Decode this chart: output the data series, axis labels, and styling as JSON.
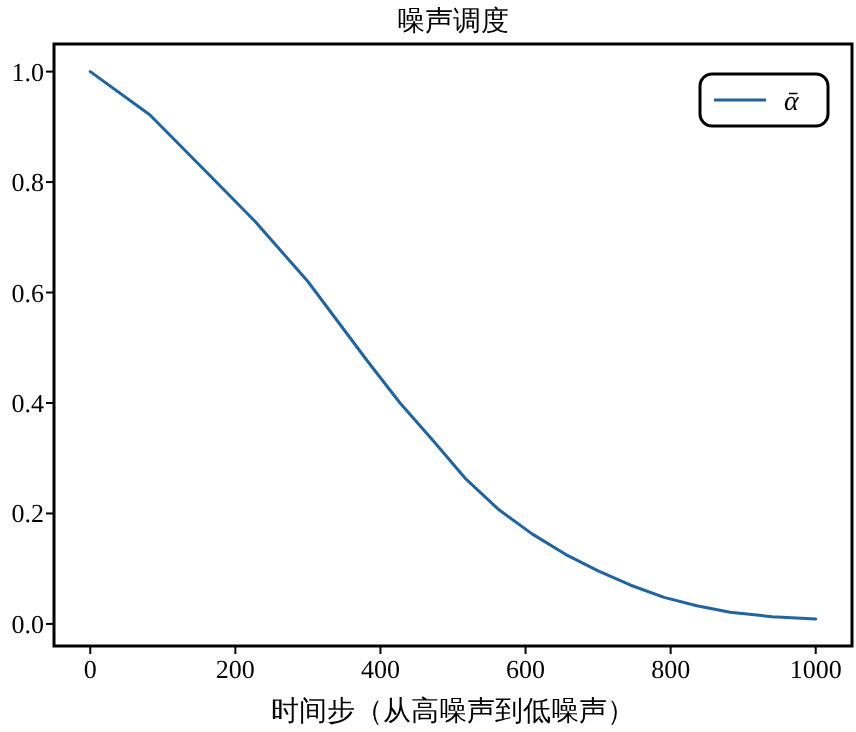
{
  "chart_data": {
    "type": "line",
    "title": "噪声调度",
    "xlabel": "时间步（从高噪声到低噪声）",
    "xlim": [
      -50,
      1050
    ],
    "xticks": [
      0,
      200,
      400,
      600,
      800,
      1000
    ],
    "ylim": [
      -0.04,
      1.05
    ],
    "yticks": [
      {
        "value": 0,
        "label": "0.0"
      },
      {
        "value": 0.2,
        "label": "0.2"
      },
      {
        "value": 0.4,
        "label": "0.4"
      },
      {
        "value": 0.6,
        "label": "0.6"
      },
      {
        "value": 0.8,
        "label": "0.8"
      },
      {
        "value": 1,
        "label": "1.0"
      }
    ],
    "grid": false,
    "legend": "top right",
    "line_style": "solid",
    "series": [
      {
        "name": "ᾱ",
        "color": "#21649e",
        "x": [
          0,
          82,
          155,
          227,
          300,
          382,
          427,
          473,
          518,
          563,
          609,
          655,
          700,
          745,
          791,
          836,
          882,
          940,
          1000
        ],
        "values": [
          1.0,
          0.922,
          0.825,
          0.729,
          0.62,
          0.476,
          0.4,
          0.331,
          0.262,
          0.207,
          0.163,
          0.126,
          0.096,
          0.07,
          0.048,
          0.033,
          0.021,
          0.013,
          0.009
        ]
      }
    ]
  }
}
